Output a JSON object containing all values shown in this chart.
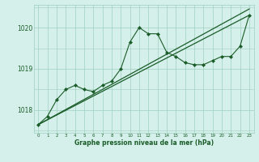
{
  "x": [
    0,
    1,
    2,
    3,
    4,
    5,
    6,
    7,
    8,
    9,
    10,
    11,
    12,
    13,
    14,
    15,
    16,
    17,
    18,
    19,
    20,
    21,
    22,
    23
  ],
  "y_main": [
    1017.65,
    1017.85,
    1018.25,
    1018.5,
    1018.6,
    1018.5,
    1018.45,
    1018.6,
    1018.7,
    1019.0,
    1019.65,
    1020.0,
    1019.85,
    1019.85,
    1019.4,
    1019.3,
    1019.15,
    1019.1,
    1019.1,
    1019.2,
    1019.3,
    1019.3,
    1019.55,
    1020.3
  ],
  "trend1_x": [
    0,
    23
  ],
  "trend1_y": [
    1017.65,
    1020.45
  ],
  "trend2_x": [
    0,
    23
  ],
  "trend2_y": [
    1017.65,
    1020.3
  ],
  "bg_color": "#d5f0eb",
  "grid_color": "#9ecfbf",
  "line_color": "#1a5c28",
  "xlabel": "Graphe pression niveau de la mer (hPa)",
  "ylim": [
    1017.45,
    1020.55
  ],
  "xlim": [
    -0.5,
    23.5
  ]
}
